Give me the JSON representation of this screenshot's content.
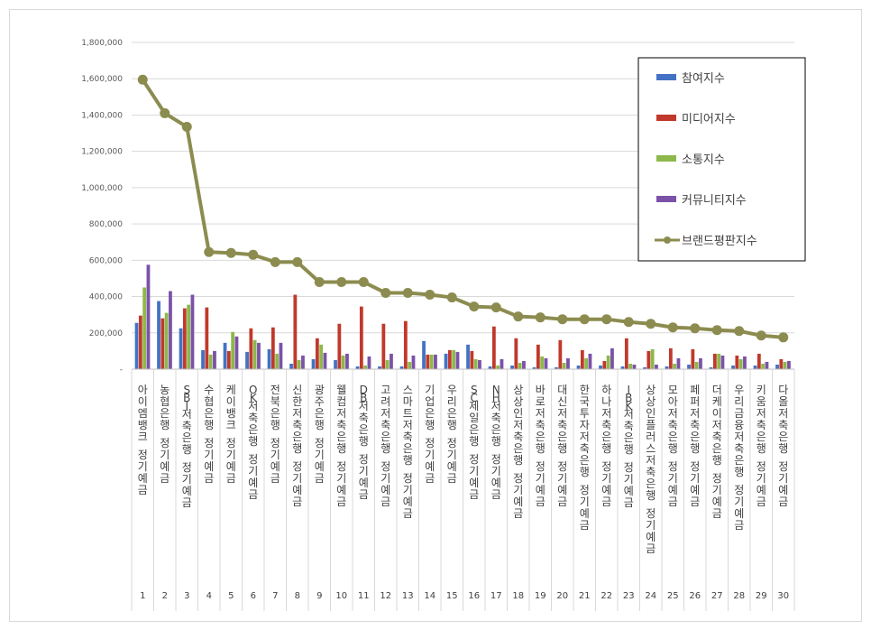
{
  "chart_data": {
    "type": "bar",
    "ylim": [
      0,
      1800000
    ],
    "yticks": [
      "-",
      "200,000",
      "400,000",
      "600,000",
      "800,000",
      "1,000,000",
      "1,200,000",
      "1,400,000",
      "1,600,000",
      "1,800,000"
    ],
    "ytick_values": [
      0,
      200000,
      400000,
      600000,
      800000,
      1000000,
      1200000,
      1400000,
      1600000,
      1800000
    ],
    "ranks": [
      "1",
      "2",
      "3",
      "4",
      "5",
      "6",
      "7",
      "8",
      "9",
      "10",
      "11",
      "12",
      "13",
      "14",
      "15",
      "16",
      "17",
      "18",
      "19",
      "20",
      "21",
      "22",
      "23",
      "24",
      "25",
      "26",
      "27",
      "28",
      "29",
      "30"
    ],
    "categories": [
      "아이엠뱅크 정기예금",
      "농협은행 정기예금",
      "SBI저축은행 정기예금",
      "수협은행 정기예금",
      "케이뱅크 정기예금",
      "OK저축은행 정기예금",
      "전북은행 정기예금",
      "신한저축은행 정기예금",
      "광주은행 정기예금",
      "웰컴저축은행 정기예금",
      "DB저축은행 정기예금",
      "고려저축은행 정기예금",
      "스마트저축은행 정기예금",
      "기업은행 정기예금",
      "우리은행 정기예금",
      "SC제일은행 정기예금",
      "NH저축은행 정기예금",
      "상상인저축은행 정기예금",
      "바로저축은행 정기예금",
      "대신저축은행 정기예금",
      "한국투자저축은행 정기예금",
      "하나저축은행 정기예금",
      "IBK저축은행 정기예금",
      "상상인플러스저축은행 정기예금",
      "모아저축은행 정기예금",
      "페퍼저축은행 정기예금",
      "더케이저축은행 정기예금",
      "우리금융저축은행 정기예금",
      "키움저축은행 정기예금",
      "다올저축은행 정기예금"
    ],
    "legend_position": "top-right",
    "series": [
      {
        "name": "참여지수",
        "kind": "bar",
        "color": "#4472C4",
        "values": [
          255000,
          375000,
          225000,
          105000,
          145000,
          95000,
          110000,
          30000,
          55000,
          50000,
          15000,
          15000,
          15000,
          155000,
          85000,
          135000,
          15000,
          20000,
          10000,
          10000,
          20000,
          20000,
          15000,
          10000,
          15000,
          25000,
          10000,
          20000,
          20000,
          25000
        ]
      },
      {
        "name": "미디어지수",
        "kind": "bar",
        "color": "#C0392B",
        "values": [
          295000,
          280000,
          335000,
          340000,
          100000,
          225000,
          230000,
          410000,
          170000,
          250000,
          345000,
          250000,
          265000,
          80000,
          105000,
          100000,
          235000,
          170000,
          135000,
          160000,
          105000,
          45000,
          170000,
          100000,
          115000,
          110000,
          85000,
          75000,
          85000,
          55000
        ]
      },
      {
        "name": "소통지수",
        "kind": "bar",
        "color": "#8DB84A",
        "values": [
          450000,
          310000,
          355000,
          80000,
          205000,
          160000,
          85000,
          50000,
          135000,
          75000,
          20000,
          50000,
          40000,
          80000,
          105000,
          55000,
          20000,
          35000,
          70000,
          35000,
          60000,
          75000,
          30000,
          110000,
          30000,
          40000,
          85000,
          55000,
          30000,
          40000
        ]
      },
      {
        "name": "커뮤니티지수",
        "kind": "bar",
        "color": "#7B52A8",
        "values": [
          575000,
          430000,
          410000,
          100000,
          180000,
          145000,
          145000,
          75000,
          90000,
          85000,
          70000,
          85000,
          75000,
          80000,
          95000,
          50000,
          55000,
          45000,
          60000,
          60000,
          85000,
          115000,
          25000,
          25000,
          60000,
          60000,
          75000,
          70000,
          40000,
          45000
        ]
      },
      {
        "name": "브랜드평판지수",
        "kind": "line",
        "color": "#8C8C50",
        "values": [
          1595000,
          1410000,
          1335000,
          645000,
          640000,
          630000,
          590000,
          590000,
          480000,
          480000,
          480000,
          420000,
          420000,
          410000,
          395000,
          345000,
          340000,
          290000,
          285000,
          275000,
          275000,
          275000,
          260000,
          250000,
          230000,
          225000,
          215000,
          210000,
          185000,
          175000
        ]
      }
    ]
  }
}
